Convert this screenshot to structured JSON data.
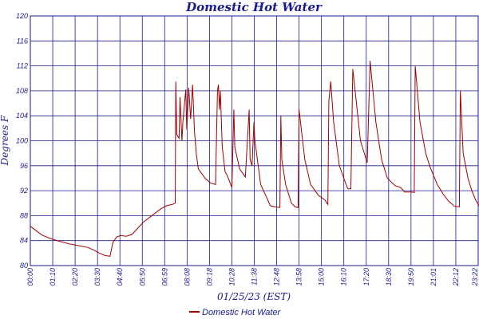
{
  "chart_data": {
    "type": "line",
    "title": "Domestic Hot Water",
    "xlabel": "01/25/23 (EST)",
    "ylabel": "Degrees F",
    "ylim": [
      80,
      120
    ],
    "y_ticks": [
      80,
      84,
      88,
      92,
      96,
      100,
      104,
      108,
      112,
      116,
      120
    ],
    "x_tick_labels": [
      "00:00",
      "01:10",
      "02:20",
      "03:30",
      "04:40",
      "05:50",
      "06:59",
      "08:08",
      "09:18",
      "10:28",
      "11:38",
      "12:48",
      "13:58",
      "15:00",
      "16:10",
      "17:20",
      "18:30",
      "19:50",
      "21:01",
      "22:12",
      "23:22"
    ],
    "grid": true,
    "legend": {
      "position": "bottom-center",
      "entries": [
        {
          "name": "Domestic Hot Water",
          "color": "#a00000"
        }
      ]
    },
    "series": [
      {
        "name": "Domestic Hot Water",
        "color": "#a00000",
        "x_hours": [
          0.0,
          0.3,
          0.6,
          1.0,
          1.5,
          2.0,
          2.5,
          3.0,
          3.3,
          3.6,
          3.9,
          4.15,
          4.3,
          4.5,
          4.7,
          5.0,
          5.3,
          5.6,
          5.9,
          6.2,
          6.5,
          6.8,
          7.1,
          7.4,
          7.55,
          7.58,
          7.63,
          7.75,
          7.8,
          7.9,
          7.95,
          8.1,
          8.15,
          8.25,
          8.35,
          8.45,
          8.55,
          8.65,
          8.75,
          9.1,
          9.4,
          9.65,
          9.75,
          9.8,
          9.85,
          9.9,
          10.0,
          10.15,
          10.25,
          10.5,
          10.6,
          10.65,
          10.9,
          11.2,
          11.4,
          11.45,
          11.55,
          11.65,
          11.7,
          12.0,
          12.3,
          12.5,
          12.75,
          13.0,
          13.05,
          13.1,
          13.3,
          13.6,
          13.8,
          13.95,
          14.0,
          14.3,
          14.6,
          15.0,
          15.35,
          15.5,
          15.55,
          15.65,
          15.8,
          16.1,
          16.45,
          16.55,
          16.7,
          16.8,
          17.2,
          17.5,
          17.55,
          17.7,
          18.0,
          18.3,
          18.6,
          19.0,
          19.3,
          19.5,
          19.85,
          20.0,
          20.05,
          20.3,
          20.6,
          20.8,
          21.2,
          21.5,
          21.8,
          22.1,
          22.35,
          22.4,
          22.55,
          22.8,
          23.0,
          23.2,
          23.4,
          23.6
        ],
        "values": [
          86.3,
          85.6,
          84.9,
          84.4,
          83.9,
          83.5,
          83.2,
          82.9,
          82.5,
          82.0,
          81.6,
          81.5,
          83.7,
          84.6,
          84.8,
          84.7,
          85.0,
          86.0,
          87.0,
          87.7,
          88.4,
          89.1,
          89.6,
          89.8,
          90.0,
          109.5,
          101.0,
          100.4,
          107.0,
          100.0,
          103.0,
          108.2,
          101.8,
          108.5,
          103.5,
          109.0,
          101.5,
          97.8,
          95.5,
          94.0,
          93.2,
          93.0,
          108.0,
          109.0,
          105.0,
          108.0,
          99.0,
          95.0,
          94.5,
          92.5,
          105.0,
          99.0,
          95.5,
          94.2,
          105.0,
          97.0,
          96.0,
          103.0,
          100.0,
          93.0,
          91.0,
          89.6,
          89.4,
          89.3,
          104.0,
          97.0,
          93.0,
          90.0,
          89.4,
          89.3,
          105.0,
          97.0,
          93.0,
          91.3,
          90.5,
          89.8,
          106.3,
          109.5,
          103.0,
          96.0,
          93.0,
          92.3,
          92.3,
          111.5,
          100.0,
          97.0,
          96.5,
          112.8,
          103.0,
          97.0,
          94.0,
          92.8,
          92.5,
          91.8,
          91.8,
          91.7,
          112.0,
          103.0,
          98.0,
          96.0,
          93.0,
          91.5,
          90.3,
          89.5,
          89.4,
          108.0,
          98.0,
          94.0,
          92.0,
          90.5,
          89.5,
          88.9
        ]
      }
    ]
  }
}
